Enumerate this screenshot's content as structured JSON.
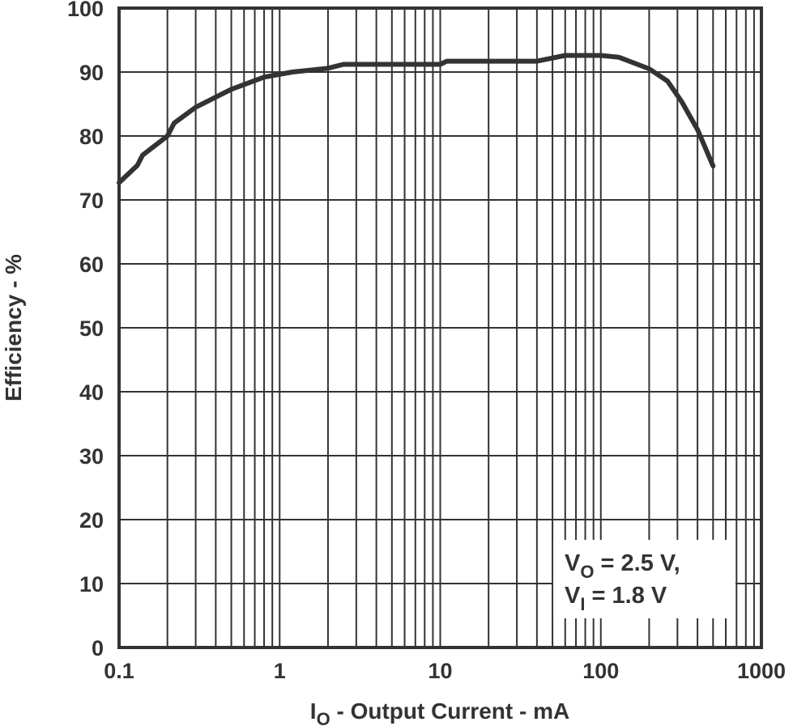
{
  "chart_data": {
    "type": "line",
    "title": "",
    "xlabel": "I_O - Output Current - mA",
    "ylabel": "Efficiency - %",
    "xscale": "log",
    "xlim": [
      0.1,
      1000
    ],
    "ylim": [
      0,
      100
    ],
    "grid": true,
    "x_tick_labels": [
      "0.1",
      "1",
      "10",
      "100",
      "1000"
    ],
    "y_tick_labels": [
      "0",
      "10",
      "20",
      "30",
      "40",
      "50",
      "60",
      "70",
      "80",
      "90",
      "100"
    ],
    "annotation": {
      "line1": {
        "main": "V",
        "sub": "O",
        "rest": " = 2.5 V,"
      },
      "line2": {
        "main": "V",
        "sub": "I",
        "rest": " = 1.8 V"
      }
    },
    "series": [
      {
        "name": "Efficiency (VO = 2.5 V, VI = 1.8 V)",
        "color": "#333333",
        "x": [
          0.1,
          0.13,
          0.14,
          0.2,
          0.22,
          0.3,
          0.5,
          0.8,
          1.2,
          2,
          2.5,
          10,
          11,
          40,
          60,
          100,
          130,
          200,
          260,
          320,
          400,
          500
        ],
        "y": [
          72.7,
          75.4,
          77,
          80,
          82,
          84.5,
          87.3,
          89.2,
          90,
          90.6,
          91.2,
          91.2,
          91.7,
          91.7,
          92.6,
          92.6,
          92.3,
          90.5,
          88.6,
          85.3,
          81,
          75.3
        ]
      }
    ]
  },
  "labels": {
    "xlabel_main": "I",
    "xlabel_sub": "O",
    "xlabel_rest": " - Output Current - mA",
    "ylabel": "Efficiency - %"
  },
  "colors": {
    "line": "#333333",
    "grid": "#333333",
    "background": "#ffffff"
  }
}
